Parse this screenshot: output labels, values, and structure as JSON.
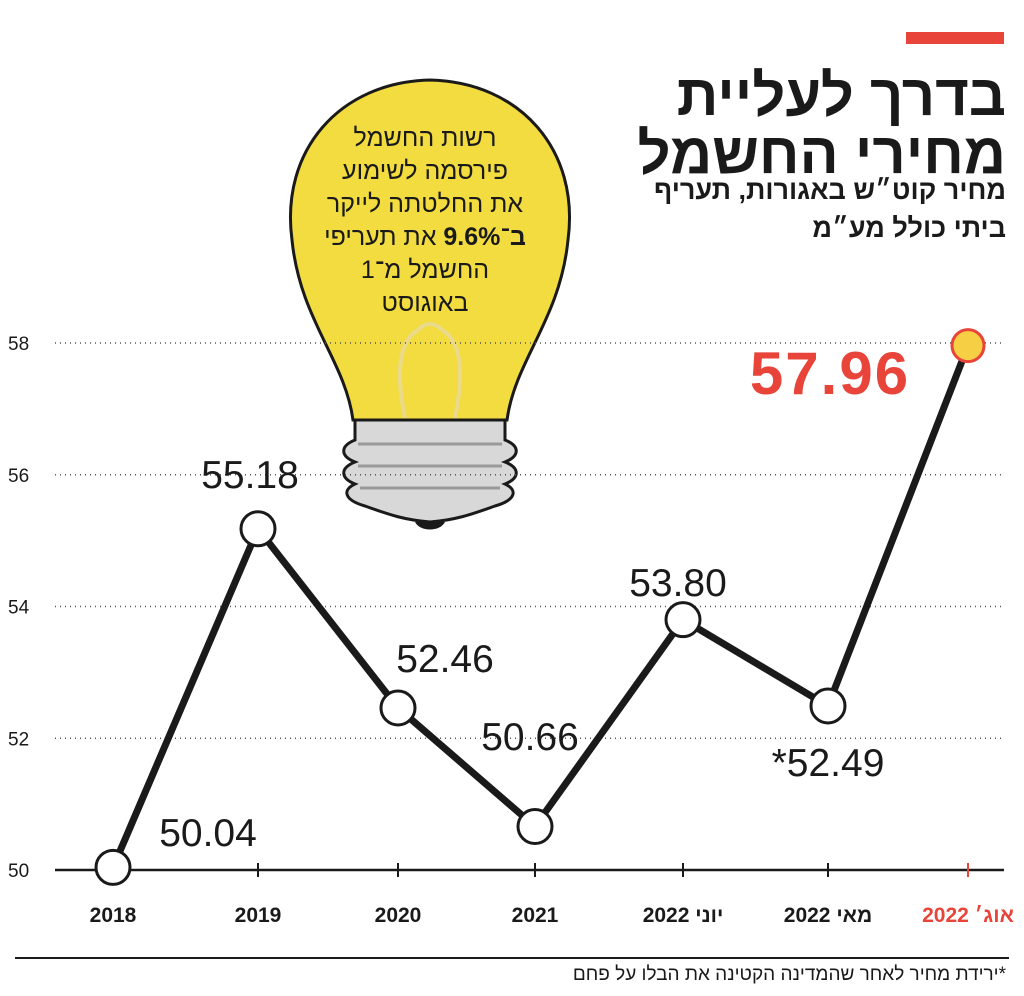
{
  "title": {
    "line1": "בדרך לעליית",
    "line2": "מחירי החשמל",
    "subtitle_line1": "מחיר קוט״ש באגורות, תעריף",
    "subtitle_line2": "ביתי כולל מע״מ"
  },
  "callout": {
    "line1": "רשות החשמל",
    "line2": "פירסמה לשימוע",
    "line3": "את החלטתה לייקר",
    "line4_bold": "ב־9.6%",
    "line4_rest": " את תעריפי",
    "line5": "החשמל מ־1",
    "line6": "באוגוסט"
  },
  "footnote": "*ירידת מחיר לאחר שהמדינה הקטינה את הבלו על פחם",
  "colors": {
    "accent": "#e8443a",
    "line": "#1a1a1a",
    "bulb": "#f3dc3f",
    "bulb_outline": "#1a1a1a",
    "base": "#d8d8d8",
    "highlight_point": "#f6cf44"
  },
  "chart_data": {
    "type": "line",
    "categories": [
      "2018",
      "2019",
      "2020",
      "2021",
      "יוני 2022",
      "מאי 2022",
      "אוג׳ 2022"
    ],
    "values": [
      50.04,
      55.18,
      52.46,
      50.66,
      53.8,
      52.49,
      57.96
    ],
    "data_labels": [
      "50.04",
      "55.18",
      "52.46",
      "50.66",
      "53.80",
      "*52.49",
      "57.96"
    ],
    "y_ticks": [
      "58",
      "56",
      "54",
      "52",
      "50"
    ],
    "ylim": [
      50,
      58
    ],
    "grid": "dotted horizontal",
    "highlight_index": 6
  }
}
